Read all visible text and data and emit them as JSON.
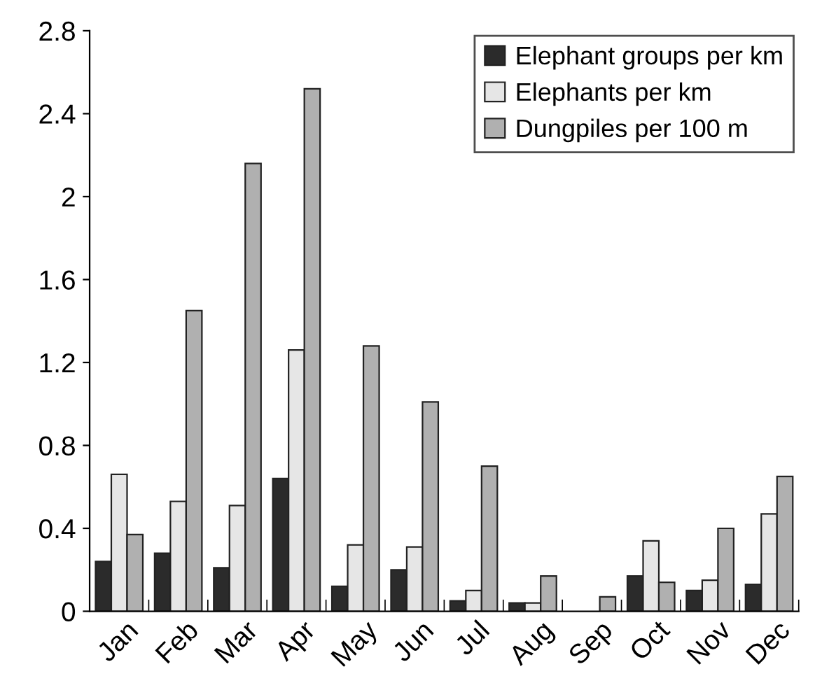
{
  "chart_data": {
    "type": "bar",
    "categories": [
      "Jan",
      "Feb",
      "Mar",
      "Apr",
      "May",
      "Jun",
      "Jul",
      "Aug",
      "Sep",
      "Oct",
      "Nov",
      "Dec"
    ],
    "series": [
      {
        "name": "Elephant groups per km",
        "color": "#2b2b2b",
        "values": [
          0.24,
          0.28,
          0.21,
          0.64,
          0.12,
          0.2,
          0.05,
          0.04,
          null,
          0.17,
          0.1,
          0.13
        ]
      },
      {
        "name": "Elephants per km",
        "color": "#e6e6e6",
        "values": [
          0.66,
          0.53,
          0.51,
          1.26,
          0.32,
          0.31,
          0.1,
          0.04,
          null,
          0.34,
          0.15,
          0.47
        ]
      },
      {
        "name": "Dungpiles per 100 m",
        "color": "#b0b0b0",
        "values": [
          0.37,
          1.45,
          2.16,
          2.52,
          1.28,
          1.01,
          0.7,
          0.17,
          0.07,
          0.14,
          0.4,
          0.65
        ]
      }
    ],
    "ylim": [
      0,
      2.8
    ],
    "yticks": [
      0,
      {
        "value": 0.4,
        "label": "0.4"
      },
      {
        "value": 0.8,
        "label": "0.8"
      },
      {
        "value": 1.2,
        "label": "1.2"
      },
      {
        "value": 1.6,
        "label": "1.6"
      },
      2,
      {
        "value": 2.4,
        "label": "2.4"
      },
      {
        "value": 2.8,
        "label": "2.8"
      }
    ],
    "legend": "top right",
    "grid": false
  }
}
